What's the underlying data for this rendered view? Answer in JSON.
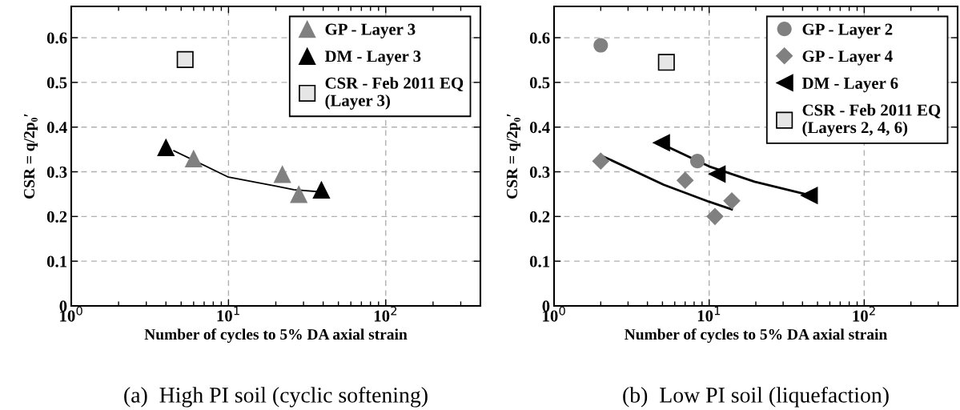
{
  "chart_data": [
    {
      "type": "scatter",
      "xlabel": "Number of cycles to 5% DA axial strain",
      "ylabel": "CSR = q/2p₀′",
      "log": "x",
      "grid": true,
      "legend": "top right",
      "annotations": [
        "(a)  High PI soil (cyclic softening)"
      ],
      "xlim": [
        1,
        400
      ],
      "xticks": [
        {
          "value": 1,
          "label": "10$^{0}$"
        },
        {
          "value": 10,
          "label": "10$^{1}$"
        },
        {
          "value": 100,
          "label": "10$^{2}$"
        }
      ],
      "ylim": [
        0,
        0.67
      ],
      "yticks": [
        0,
        0.1,
        0.2,
        0.3,
        0.4,
        0.5,
        0.6
      ],
      "series": [
        {
          "name": "GP - Layer 3",
          "marker": "triangle",
          "color": "#808080",
          "x": [
            6,
            22,
            28
          ],
          "values": [
            0.33,
            0.295,
            0.25
          ]
        },
        {
          "name": "DM - Layer 3",
          "marker": "triangle",
          "color": "#000000",
          "x": [
            4,
            39
          ],
          "values": [
            0.355,
            0.26
          ]
        },
        {
          "name": "CSR - Feb 2011 EQ\n(Layer 3)",
          "marker": "square",
          "color": "#e6e6e6",
          "x": [
            5.3
          ],
          "values": [
            0.551
          ]
        },
        {
          "type": "line",
          "marker": "none",
          "line_style": "solid",
          "color": "#000000",
          "x": [
            4.5,
            10,
            20,
            26,
            39
          ],
          "values": [
            0.347,
            0.288,
            0.268,
            0.26,
            0.255
          ]
        }
      ]
    },
    {
      "type": "scatter",
      "xlabel": "Number of cycles to 5% DA axial strain",
      "ylabel": "CSR = q/2p₀′",
      "log": "x",
      "grid": true,
      "legend": "top right",
      "annotations": [
        "(b)  Low PI soil (liquefaction)"
      ],
      "xlim": [
        1,
        400
      ],
      "xticks": [
        {
          "value": 1,
          "label": "10$^{0}$"
        },
        {
          "value": 10,
          "label": "10$^{1}$"
        },
        {
          "value": 100,
          "label": "10$^{2}$"
        }
      ],
      "ylim": [
        0,
        0.67
      ],
      "yticks": [
        0,
        0.1,
        0.2,
        0.3,
        0.4,
        0.5,
        0.6
      ],
      "series": [
        {
          "name": "GP - Layer 2",
          "marker": "circle",
          "color": "#808080",
          "x": [
            2,
            8.4
          ],
          "values": [
            0.583,
            0.324
          ]
        },
        {
          "name": "GP - Layer 4",
          "marker": "diamond",
          "color": "#808080",
          "x": [
            2,
            7,
            10.9,
            14
          ],
          "values": [
            0.324,
            0.281,
            0.2,
            0.235
          ]
        },
        {
          "name": "DM - Layer 6",
          "marker": "triangle_left",
          "color": "#000000",
          "x": [
            4.9,
            11.2,
            44
          ],
          "values": [
            0.365,
            0.295,
            0.247
          ]
        },
        {
          "name": "CSR - Feb 2011 EQ\n(Layers 2, 4, 6)",
          "marker": "square",
          "color": "#e6e6e6",
          "x": [
            5.3
          ],
          "values": [
            0.545
          ]
        },
        {
          "type": "line",
          "marker": "none",
          "line_style": "solid",
          "color": "#000000",
          "x": [
            2,
            5.1,
            10,
            14
          ],
          "values": [
            0.337,
            0.271,
            0.233,
            0.216
          ]
        },
        {
          "type": "line",
          "marker": "none",
          "line_style": "solid",
          "color": "#000000",
          "x": [
            5.1,
            10,
            19.6,
            42
          ],
          "values": [
            0.36,
            0.312,
            0.278,
            0.25
          ]
        }
      ]
    }
  ]
}
